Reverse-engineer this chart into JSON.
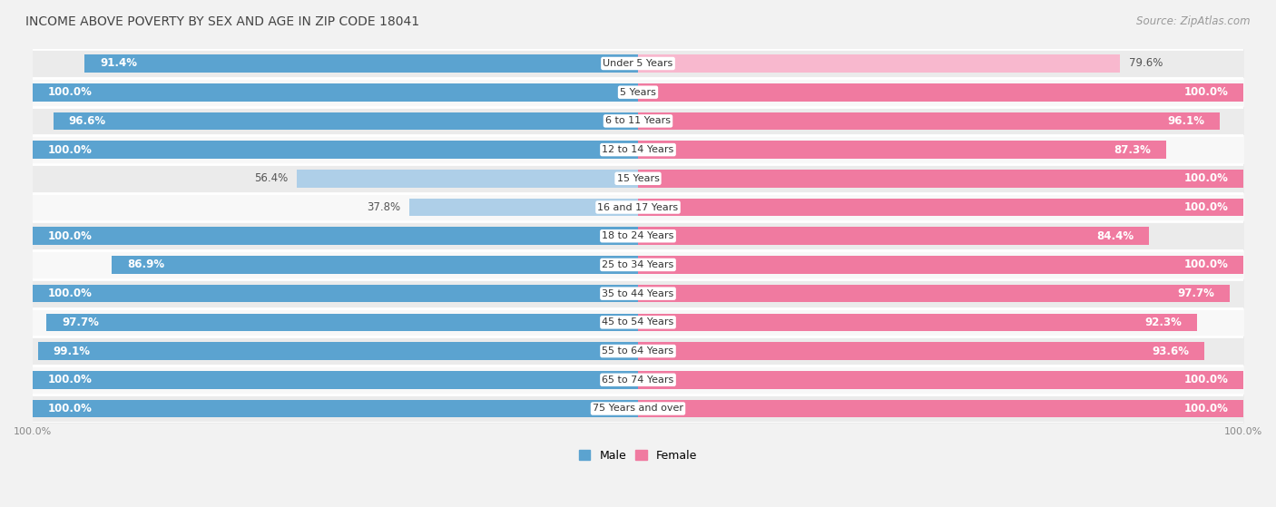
{
  "title": "INCOME ABOVE POVERTY BY SEX AND AGE IN ZIP CODE 18041",
  "source": "Source: ZipAtlas.com",
  "categories": [
    "Under 5 Years",
    "5 Years",
    "6 to 11 Years",
    "12 to 14 Years",
    "15 Years",
    "16 and 17 Years",
    "18 to 24 Years",
    "25 to 34 Years",
    "35 to 44 Years",
    "45 to 54 Years",
    "55 to 64 Years",
    "65 to 74 Years",
    "75 Years and over"
  ],
  "male_values": [
    91.4,
    100.0,
    96.6,
    100.0,
    56.4,
    37.8,
    100.0,
    86.9,
    100.0,
    97.7,
    99.1,
    100.0,
    100.0
  ],
  "female_values": [
    79.6,
    100.0,
    96.1,
    87.3,
    100.0,
    100.0,
    84.4,
    100.0,
    97.7,
    92.3,
    93.6,
    100.0,
    100.0
  ],
  "male_color": "#5ba3d0",
  "female_color": "#f07aa0",
  "male_light_color": "#aecfe8",
  "female_light_color": "#f8b8ce",
  "background_color": "#f2f2f2",
  "row_even_color": "#ebebeb",
  "row_odd_color": "#f8f8f8",
  "title_fontsize": 10,
  "source_fontsize": 8.5,
  "label_fontsize": 8.5,
  "category_fontsize": 8.0,
  "legend_fontsize": 9,
  "axis_label_fontsize": 8
}
